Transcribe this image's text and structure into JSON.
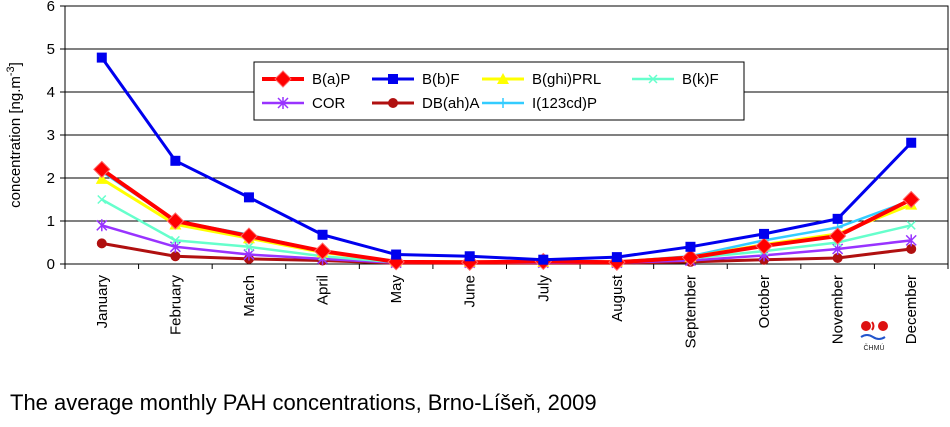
{
  "caption": "The average monthly PAH concentrations, Brno-Líšeň, 2009",
  "logo_text": "ČHMÚ",
  "chart_data": {
    "type": "line",
    "categories": [
      "January",
      "February",
      "March",
      "April",
      "May",
      "June",
      "July",
      "August",
      "September",
      "October",
      "November",
      "December"
    ],
    "ylabel": "concentration [ng.m-3]",
    "ylim": [
      0,
      6
    ],
    "yticks": [
      0,
      1,
      2,
      3,
      4,
      5,
      6
    ],
    "grid": true,
    "legend_position": "top-center",
    "series": [
      {
        "name": "B(a)P",
        "color": "#ff0000",
        "marker": "diamond",
        "values": [
          2.2,
          1.0,
          0.65,
          0.3,
          0.05,
          0.04,
          0.06,
          0.04,
          0.15,
          0.42,
          0.65,
          1.5
        ]
      },
      {
        "name": "B(b)F",
        "color": "#0000ee",
        "marker": "square",
        "values": [
          4.8,
          2.4,
          1.55,
          0.68,
          0.22,
          0.18,
          0.1,
          0.16,
          0.4,
          0.7,
          1.05,
          2.82
        ]
      },
      {
        "name": "B(ghi)PRL",
        "color": "#ffff00",
        "marker": "triangle",
        "values": [
          1.98,
          0.92,
          0.6,
          0.27,
          0.06,
          0.05,
          0.05,
          0.05,
          0.16,
          0.45,
          0.7,
          1.38
        ]
      },
      {
        "name": "B(k)F",
        "color": "#66ffcc",
        "marker": "x",
        "values": [
          1.5,
          0.55,
          0.4,
          0.18,
          0.04,
          0.03,
          0.04,
          0.04,
          0.13,
          0.3,
          0.5,
          0.9
        ]
      },
      {
        "name": "COR",
        "color": "#9933ff",
        "marker": "star",
        "values": [
          0.9,
          0.4,
          0.22,
          0.12,
          0.03,
          0.03,
          0.03,
          0.03,
          0.08,
          0.2,
          0.35,
          0.55
        ]
      },
      {
        "name": "DB(ah)A",
        "color": "#b01010",
        "marker": "circle",
        "values": [
          0.48,
          0.18,
          0.12,
          0.08,
          0.02,
          0.02,
          0.02,
          0.02,
          0.05,
          0.1,
          0.14,
          0.35
        ]
      },
      {
        "name": "I(123cd)P",
        "color": "#33ccff",
        "marker": "plus",
        "values": [
          2.15,
          1.0,
          0.68,
          0.3,
          0.06,
          0.05,
          0.05,
          0.05,
          0.18,
          0.55,
          0.85,
          1.48
        ]
      }
    ]
  }
}
